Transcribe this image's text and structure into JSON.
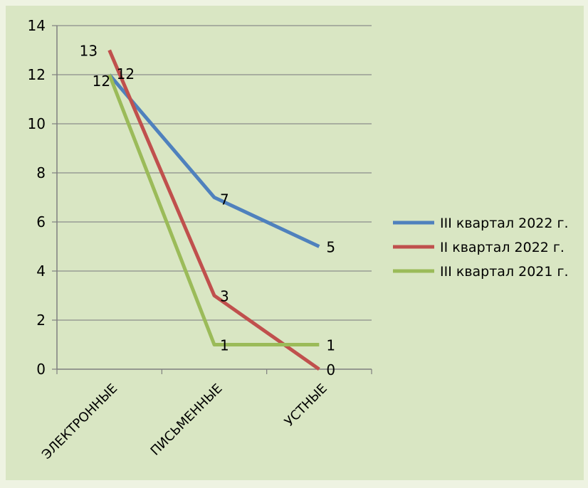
{
  "colors": {
    "page_background": "#eef3e2",
    "plot_background": "#d9e6c3",
    "gridline": "#8c8c8c",
    "axis": "#7f7f7f",
    "text": "#000000"
  },
  "chart_data": {
    "type": "line",
    "title": "",
    "xlabel": "",
    "ylabel": "",
    "categories": [
      "ЭЛЕКТРОННЫЕ",
      "ПИСЬМЕННЫЕ",
      "УСТНЫЕ"
    ],
    "ylim": [
      0,
      14
    ],
    "yticks": [
      "0",
      "2",
      "4",
      "6",
      "8",
      "10",
      "12",
      "14"
    ],
    "grid": true,
    "legend_position": "right",
    "series": [
      {
        "name": "III квартал 2022 г.",
        "color": "#4f81bd",
        "values": [
          12,
          7,
          5
        ],
        "labels": [
          "12",
          "7",
          "5"
        ]
      },
      {
        "name": "II квартал 2022 г.",
        "color": "#c0504d",
        "values": [
          13,
          3,
          0
        ],
        "labels": [
          "13",
          "3",
          "0"
        ]
      },
      {
        "name": "III квартал 2021 г.",
        "color": "#9bbb59",
        "values": [
          12,
          1,
          1
        ],
        "labels": [
          "12",
          "1",
          "1"
        ]
      }
    ]
  }
}
